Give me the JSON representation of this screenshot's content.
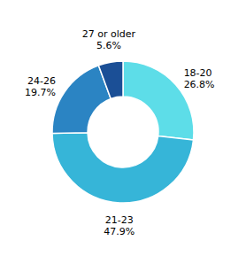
{
  "chart_data": {
    "type": "donut",
    "categories": [
      "18-20",
      "21-23",
      "24-26",
      "27 or older"
    ],
    "values": [
      26.8,
      47.9,
      19.7,
      5.6
    ],
    "value_labels": [
      "26.8%",
      "47.9%",
      "19.7%",
      "5.6%"
    ],
    "colors": [
      "#5DDDE8",
      "#36B5D8",
      "#2B84C3",
      "#1B4F96"
    ],
    "data_labels": true
  }
}
